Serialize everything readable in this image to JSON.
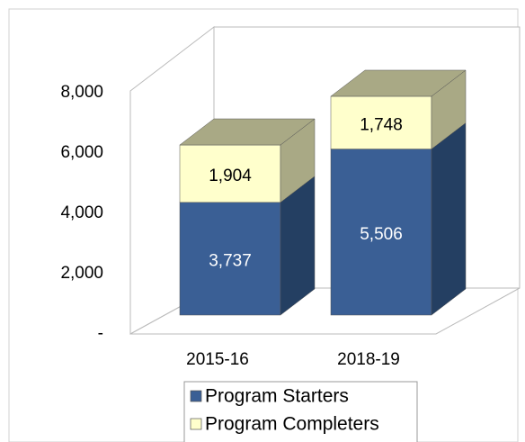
{
  "chart_data": {
    "type": "bar3d_stacked",
    "categories": [
      "2015-16",
      "2018-19"
    ],
    "series": [
      {
        "name": "Program Starters",
        "color": "#3a5f95",
        "side": "#243f62",
        "values": [
          3737,
          5506
        ],
        "value_labels": [
          "3,737",
          "5,506"
        ],
        "label_color": "#ffffff"
      },
      {
        "name": "Program Completers",
        "color": "#ffffcc",
        "side": "#a9a985",
        "values": [
          1904,
          1748
        ],
        "value_labels": [
          "1,904",
          "1,748"
        ],
        "label_color": "#000000"
      }
    ],
    "ylim": [
      0,
      8000
    ],
    "yticks": [
      {
        "value": 0,
        "label": "-"
      },
      {
        "value": 2000,
        "label": "2,000"
      },
      {
        "value": 4000,
        "label": "4,000"
      },
      {
        "value": 6000,
        "label": "6,000"
      },
      {
        "value": 8000,
        "label": "8,000"
      }
    ],
    "legend": "bottom"
  }
}
